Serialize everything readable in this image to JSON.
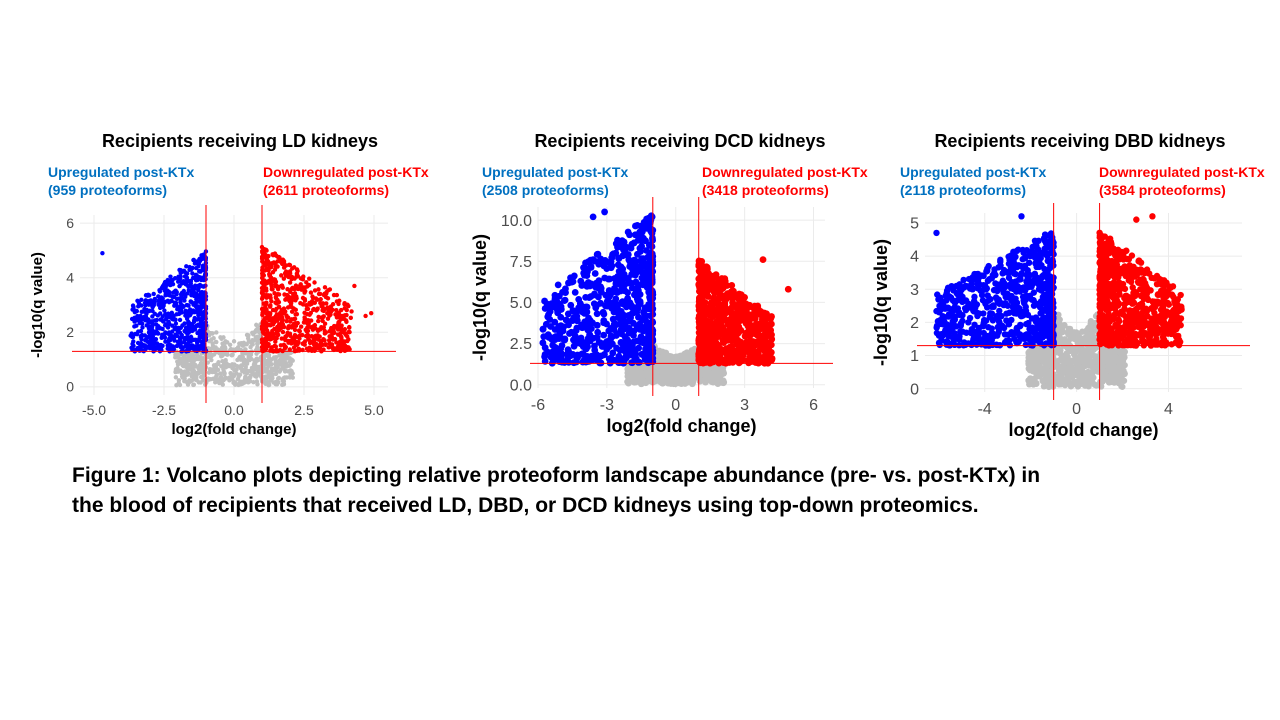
{
  "colors": {
    "up": "#0000ff",
    "down": "#ff0000",
    "ns": "#bebebe",
    "line": "#ff0000",
    "up_text": "#0070c0",
    "down_text": "#ff0000",
    "grid": "#ebebeb"
  },
  "caption": {
    "line1": "Figure 1: Volcano plots depicting relative proteoform landscape abundance (pre- vs. post-KTx) in",
    "line2": "the blood of recipients that received LD, DBD, or DCD kidneys using top-down proteomics."
  },
  "chart_data": [
    {
      "type": "scatter",
      "title": "Recipients receiving LD kidneys",
      "xlabel": "log2(fold change)",
      "ylabel": "-log10(q value)",
      "xlim": [
        -5.5,
        5.5
      ],
      "ylim": [
        -0.3,
        6.3
      ],
      "xticks": [
        -5,
        -2.5,
        0,
        2.5,
        5
      ],
      "xtick_labels": [
        "-5.0",
        "-2.5",
        "0.0",
        "2.5",
        "5.0"
      ],
      "yticks": [
        0,
        2,
        4,
        6
      ],
      "ytick_labels": [
        "0",
        "2",
        "4",
        "6"
      ],
      "fc_threshold": 1,
      "q_threshold": 1.3,
      "up": {
        "label": "Upregulated post-KTx",
        "count": "(959 proteoforms)",
        "x_range": [
          -3.7,
          -1
        ],
        "y_max": 5,
        "outliers": [
          [
            -4.7,
            4.9
          ]
        ]
      },
      "down": {
        "label": "Downregulated post-KTx",
        "count": "(2611 proteoforms)",
        "x_range": [
          1,
          4.2
        ],
        "y_max": 5.2,
        "outliers": [
          [
            4.9,
            2.7
          ],
          [
            4.7,
            2.6
          ],
          [
            4.3,
            3.7
          ]
        ]
      },
      "grid": true
    },
    {
      "type": "scatter",
      "title": "Recipients receiving DCD kidneys",
      "xlabel": "log2(fold change)",
      "ylabel": "-log10(q value)",
      "xlim": [
        -6,
        6.5
      ],
      "ylim": [
        -0.2,
        10.8
      ],
      "xticks": [
        -6,
        -3,
        0,
        3,
        6
      ],
      "xtick_labels": [
        "-6",
        "-3",
        "0",
        "3",
        "6"
      ],
      "yticks": [
        0,
        2.5,
        5,
        7.5,
        10
      ],
      "ytick_labels": [
        "0.0",
        "2.5",
        "5.0",
        "7.5",
        "10.0"
      ],
      "fc_threshold": 1,
      "q_threshold": 1.3,
      "up": {
        "label": "Upregulated post-KTx",
        "count": "(2508 proteoforms)",
        "x_range": [
          -5.8,
          -1
        ],
        "y_max": 10.5,
        "outliers": [
          [
            -3.1,
            10.5
          ],
          [
            -3.6,
            10.2
          ],
          [
            -5.6,
            4.9
          ]
        ]
      },
      "down": {
        "label": "Downregulated post-KTx",
        "count": "(3418 proteoforms)",
        "x_range": [
          1,
          4.2
        ],
        "y_max": 7.7,
        "outliers": [
          [
            4.9,
            5.8
          ],
          [
            3.8,
            7.6
          ]
        ]
      },
      "grid": true
    },
    {
      "type": "scatter",
      "title": "Recipients receiving DBD kidneys",
      "xlabel": "log2(fold change)",
      "ylabel": "-log10(q value)",
      "xlim": [
        -6.6,
        7.2
      ],
      "ylim": [
        -0.1,
        5.3
      ],
      "xticks": [
        -4,
        0,
        4
      ],
      "xtick_labels": [
        "-4",
        "0",
        "4"
      ],
      "yticks": [
        0,
        1,
        2,
        3,
        4,
        5
      ],
      "ytick_labels": [
        "0",
        "1",
        "2",
        "3",
        "4",
        "5"
      ],
      "fc_threshold": 1,
      "q_threshold": 1.3,
      "up": {
        "label": "Upregulated post-KTx",
        "count": "(2118 proteoforms)",
        "x_range": [
          -6.1,
          -1
        ],
        "y_max": 4.8,
        "outliers": [
          [
            -6.1,
            4.7
          ],
          [
            -2.4,
            5.2
          ]
        ]
      },
      "down": {
        "label": "Downregulated post-KTx",
        "count": "(3584 proteoforms)",
        "x_range": [
          1,
          4.6
        ],
        "y_max": 4.8,
        "outliers": [
          [
            3.3,
            5.2
          ],
          [
            2.6,
            5.1
          ]
        ]
      },
      "grid": true
    }
  ]
}
